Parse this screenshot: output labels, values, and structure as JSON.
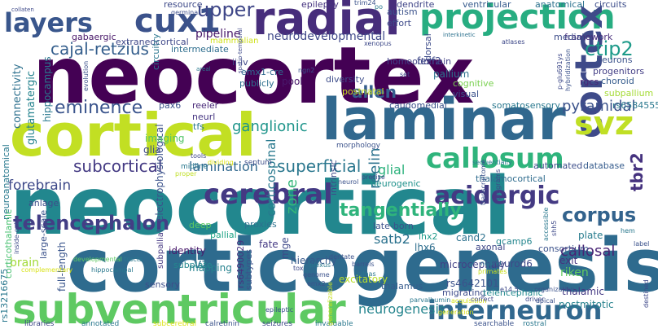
{
  "words": [
    {
      "text": "neocortex",
      "color": "#440154"
    },
    {
      "text": "neocortical",
      "color": "#22878e"
    },
    {
      "text": "corticogenesis",
      "color": "#2e6b8e"
    },
    {
      "text": "cortical",
      "color": "#c2df23"
    },
    {
      "text": "laminar",
      "color": "#31688e"
    },
    {
      "text": "radial",
      "color": "#472d7b"
    },
    {
      "text": "projection",
      "color": "#27ad81"
    },
    {
      "text": "cux1",
      "color": "#3b528b"
    },
    {
      "text": "layers",
      "color": "#39568c"
    },
    {
      "text": "subventricular",
      "color": "#5ec962"
    },
    {
      "text": "cortex",
      "color": "#3e4a89"
    },
    {
      "text": "svz",
      "color": "#c0df25"
    },
    {
      "text": "callosum",
      "color": "#2fb47c"
    },
    {
      "text": "interneuron",
      "color": "#31688e"
    },
    {
      "text": "cerebral",
      "color": "#443983"
    },
    {
      "text": "acidergic",
      "color": "#443a83"
    },
    {
      "text": "telencephalon",
      "color": "#433e85"
    },
    {
      "text": "upper",
      "color": "#3f4788"
    },
    {
      "text": "tangentially",
      "color": "#2fb47c"
    },
    {
      "text": "corpus",
      "color": "#33638d"
    },
    {
      "text": "cajal-retzius",
      "color": "#355f8d"
    },
    {
      "text": "ctip2",
      "color": "#1e9b8a"
    },
    {
      "text": "allen",
      "color": "#355e8d"
    },
    {
      "text": "eminence",
      "color": "#3a548c"
    },
    {
      "text": "ganglionic",
      "color": "#1f958b"
    },
    {
      "text": "pyramidal",
      "color": "#3b528b"
    },
    {
      "text": "superficial",
      "color": "#2a778e"
    },
    {
      "text": "forebrain",
      "color": "#3e4989"
    },
    {
      "text": "subcortical",
      "color": "#443a83"
    },
    {
      "text": "neurogenesis",
      "color": "#25858e"
    },
    {
      "text": "tbr2",
      "color": "#46337f"
    },
    {
      "text": "callosal",
      "color": "#482475"
    },
    {
      "text": "lamination",
      "color": "#31688e"
    },
    {
      "text": "zone",
      "color": "#35b779"
    },
    {
      "text": "reelin",
      "color": "#2c728e"
    },
    {
      "text": "satb2",
      "color": "#2c728e"
    },
    {
      "text": "corticospinal",
      "color": "#29798e"
    },
    {
      "text": "neurodevelopmental",
      "color": "#3f4889"
    },
    {
      "text": "pipeline",
      "color": "#48186a"
    },
    {
      "text": "glial",
      "color": "#2db27d"
    },
    {
      "text": "vz",
      "color": "#2c718e"
    },
    {
      "text": "brain",
      "color": "#a2da37"
    },
    {
      "text": "mapping",
      "color": "#26828e"
    },
    {
      "text": "identity",
      "color": "#481a6c"
    },
    {
      "text": "fate",
      "color": "#443983"
    },
    {
      "text": "hierarchy",
      "color": "#38598c"
    },
    {
      "text": "excitatory",
      "color": "#bade28"
    },
    {
      "text": "microcephaly",
      "color": "#424186"
    },
    {
      "text": "connectivity",
      "color": "#2d708e"
    },
    {
      "text": "glutamatergic",
      "color": "#25838e"
    },
    {
      "text": "hippocampus",
      "color": "#2a788e"
    },
    {
      "text": "neuroanatomical",
      "color": "#29798e"
    },
    {
      "text": "corticothalamic",
      "color": "#46c06f"
    },
    {
      "text": "full-length",
      "color": "#39558c"
    },
    {
      "text": "electrophysiological",
      "color": "#3b528b"
    },
    {
      "text": "imaging",
      "color": "#52c569"
    },
    {
      "text": "glia",
      "color": "#3e4a89"
    },
    {
      "text": "anlage",
      "color": "#3d4e8a"
    },
    {
      "text": "pax6",
      "color": "#3b528b"
    },
    {
      "text": "reeler",
      "color": "#482878"
    },
    {
      "text": "neurl",
      "color": "#453581"
    },
    {
      "text": "tfs",
      "color": "#2a788e"
    },
    {
      "text": "somatosensory",
      "color": "#2a788e"
    },
    {
      "text": "thalamocortical",
      "color": "#2f6c8e"
    },
    {
      "text": "automated",
      "color": "#3d4e8a"
    },
    {
      "text": "database",
      "color": "#365c8d"
    },
    {
      "text": "plate",
      "color": "#287c8e"
    },
    {
      "text": "consortium",
      "color": "#3b528b"
    },
    {
      "text": "exit",
      "color": "#46337f"
    },
    {
      "text": "riken",
      "color": "#63cb5f"
    },
    {
      "text": "thalamic",
      "color": "#443983"
    },
    {
      "text": "postmitotic",
      "color": "#26828e"
    },
    {
      "text": "rs4642101",
      "color": "#3b528b"
    },
    {
      "text": "neurod6",
      "color": "#3e4989"
    },
    {
      "text": "migrating",
      "color": "#3e4c8a"
    },
    {
      "text": "telencephalic",
      "color": "#23898e"
    },
    {
      "text": "thalamus",
      "color": "#365c8d"
    },
    {
      "text": "gcamp6",
      "color": "#24868e"
    },
    {
      "text": "axonal",
      "color": "#3f4788"
    },
    {
      "text": "cand2",
      "color": "#2d718e"
    },
    {
      "text": "lhx6",
      "color": "#2e6e8e"
    },
    {
      "text": "lhx2",
      "color": "#1f9a8a"
    },
    {
      "text": "late-born",
      "color": "#3b518b"
    },
    {
      "text": "neurogenic",
      "color": "#20928c"
    },
    {
      "text": "mge",
      "color": "#3e4989"
    },
    {
      "text": "subtypes",
      "color": "#3b528b"
    },
    {
      "text": "rs6490029",
      "color": "#46327e"
    },
    {
      "text": "subplate",
      "color": "#24878e"
    },
    {
      "text": "sensory",
      "color": "#3d4e8a"
    },
    {
      "text": "proxies",
      "color": "#2c728e"
    },
    {
      "text": "pallial",
      "color": "#20a486"
    },
    {
      "text": "deep",
      "color": "#5cc863"
    },
    {
      "text": "rs13216675",
      "color": "#2a788e"
    },
    {
      "text": "large-scale",
      "color": "#3b528b"
    },
    {
      "text": "subpallial",
      "color": "#453882"
    },
    {
      "text": "postnatal",
      "color": "#c8e020"
    },
    {
      "text": "diversity",
      "color": "#3d4d8a"
    },
    {
      "text": "pool",
      "color": "#48186a"
    },
    {
      "text": "publicly",
      "color": "#2e6f8e"
    },
    {
      "text": "emx1-cre",
      "color": "#31688e"
    },
    {
      "text": "ii-iv",
      "color": "#3f4788"
    },
    {
      "text": "intermediate",
      "color": "#2e6e8e"
    },
    {
      "text": "mammalian",
      "color": "#d0e11c"
    },
    {
      "text": "extraneocortical",
      "color": "#3f4889"
    },
    {
      "text": "gabaergic",
      "color": "#481769"
    },
    {
      "text": "circuitry",
      "color": "#2a768e"
    },
    {
      "text": "homeodomain",
      "color": "#424086"
    },
    {
      "text": "dorsal",
      "color": "#3e4c8a"
    },
    {
      "text": "fezf2",
      "color": "#3e4989"
    },
    {
      "text": "pallium",
      "color": "#2d718e"
    },
    {
      "text": "cognitive",
      "color": "#7ad151"
    },
    {
      "text": "neurons",
      "color": "#3b528b"
    },
    {
      "text": "progenitors",
      "color": "#433e85"
    },
    {
      "text": "rgcs",
      "color": "#482475"
    },
    {
      "text": "choroid",
      "color": "#365c8d"
    },
    {
      "text": "subpallium",
      "color": "#a5db36"
    },
    {
      "text": "rs6584555",
      "color": "#2a788e"
    },
    {
      "text": "framework",
      "color": "#472d7b"
    },
    {
      "text": "medial",
      "color": "#3d4d8a"
    },
    {
      "text": "autism",
      "color": "#3b528b"
    },
    {
      "text": "effort",
      "color": "#3e4a89"
    },
    {
      "text": "dendrite",
      "color": "#404588"
    },
    {
      "text": "ventricular",
      "color": "#375b8d"
    },
    {
      "text": "anatomical",
      "color": "#2c728e"
    },
    {
      "text": "circuits",
      "color": "#3d4d8a"
    },
    {
      "text": "epilepsy",
      "color": "#46337f"
    },
    {
      "text": "resource",
      "color": "#3e4a89"
    },
    {
      "text": "germinal",
      "color": "#3d4e8a"
    },
    {
      "text": "interkinetic",
      "color": "#2c718e"
    },
    {
      "text": "atlases",
      "color": "#3e4989"
    },
    {
      "text": "morphology",
      "color": "#3b528b"
    },
    {
      "text": "dividing",
      "color": "#dde318"
    },
    {
      "text": "septum",
      "color": "#3d4e8a"
    },
    {
      "text": "midline",
      "color": "#2a788e"
    },
    {
      "text": "tools",
      "color": "#3f4788"
    },
    {
      "text": "proper",
      "color": "#c0df25"
    },
    {
      "text": "tracts",
      "color": "#2a788e"
    },
    {
      "text": "inside-out",
      "color": "#3e4c8a"
    },
    {
      "text": "hippocampal",
      "color": "#2a788e"
    },
    {
      "text": "developmental",
      "color": "#5ec962"
    },
    {
      "text": "complementary",
      "color": "#d8e219"
    },
    {
      "text": "libraries",
      "color": "#3f4788"
    },
    {
      "text": "annotated",
      "color": "#2a788e"
    },
    {
      "text": "subcerebral",
      "color": "#dde318"
    },
    {
      "text": "calretinin",
      "color": "#3b528b"
    },
    {
      "text": "seizures",
      "color": "#3e4989"
    },
    {
      "text": "invaluable",
      "color": "#2a788e"
    },
    {
      "text": "searchable",
      "color": "#3b528b"
    },
    {
      "text": "rostral",
      "color": "#2a788e"
    },
    {
      "text": "epileptic",
      "color": "#3b528b"
    },
    {
      "text": "generalizable",
      "color": "#c8e020"
    },
    {
      "text": "parvalbumin",
      "color": "#2a788e"
    },
    {
      "text": "acquisition",
      "color": "#d8e219"
    },
    {
      "text": "correct",
      "color": "#3f4788"
    },
    {
      "text": "driver",
      "color": "#3e4989"
    },
    {
      "text": "apical",
      "color": "#3b528b"
    },
    {
      "text": "destined",
      "color": "#3e4989"
    },
    {
      "text": "label",
      "color": "#3b528b"
    },
    {
      "text": "hem",
      "color": "#2a788e"
    },
    {
      "text": "shh5",
      "color": "#3e4989"
    },
    {
      "text": "accessible",
      "color": "#2a788e"
    },
    {
      "text": "organization",
      "color": "#3b528b"
    },
    {
      "text": "e14.5",
      "color": "#3e4989"
    },
    {
      "text": "generation",
      "color": "#d8e219"
    },
    {
      "text": "primates",
      "color": "#c8e020"
    },
    {
      "text": "dentate",
      "color": "#3b528b"
    },
    {
      "text": "genome",
      "color": "#3b528b"
    },
    {
      "text": "plexus",
      "color": "#2a788e"
    },
    {
      "text": "tox",
      "color": "#3e4989"
    },
    {
      "text": "emx2",
      "color": "#3b528b"
    },
    {
      "text": "barrels",
      "color": "#3b528b"
    },
    {
      "text": "cdnas",
      "color": "#2a788e"
    },
    {
      "text": "precise",
      "color": "#3f4788"
    },
    {
      "text": "neurol",
      "color": "#3b528b"
    },
    {
      "text": "sequentially",
      "color": "#2a788e"
    },
    {
      "text": "programs",
      "color": "#3e4989"
    },
    {
      "text": "transcriptome",
      "color": "#3b528b"
    },
    {
      "text": "neural",
      "color": "#2a788e"
    },
    {
      "text": "p-glu691ys",
      "color": "#3e4989"
    },
    {
      "text": "hybridization",
      "color": "#3b528b"
    },
    {
      "text": "set",
      "color": "#3e4989"
    },
    {
      "text": "ngn2",
      "color": "#3b528b"
    },
    {
      "text": "areal",
      "color": "#2a788e"
    },
    {
      "text": "spatio-temporal",
      "color": "#3e4989"
    },
    {
      "text": "evolution",
      "color": "#3b528b"
    },
    {
      "text": "collaten",
      "color": "#3e4989"
    },
    {
      "text": "trim24",
      "color": "#3b528b"
    },
    {
      "text": "po",
      "color": "#2a788e"
    },
    {
      "text": "xenopus",
      "color": "#3e4989"
    },
    {
      "text": "visual",
      "color": "#3b528b"
    },
    {
      "text": "intrinsic",
      "color": "#3e4989"
    },
    {
      "text": "caudomedial",
      "color": "#3b528b"
    }
  ]
}
